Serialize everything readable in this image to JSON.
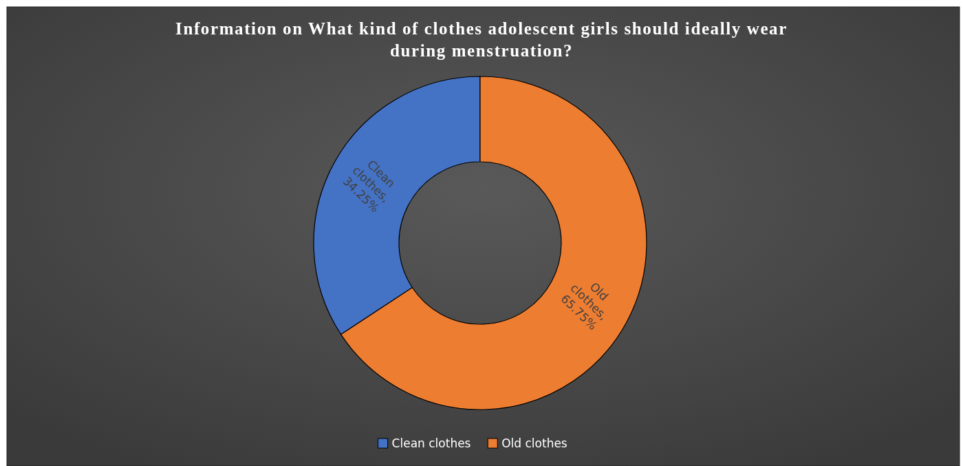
{
  "chart_data": {
    "type": "donut",
    "title": "Information on What kind of clothes adolescent girls should ideally wear during menstruation?",
    "categories": [
      "Clean clothes",
      "Old clothes"
    ],
    "values": [
      34.25,
      65.75
    ],
    "colors": [
      "#4472c4",
      "#ed7d31"
    ],
    "value_labels": [
      "Clean clothes, 34.25%",
      "Old clothes, 65.75%"
    ],
    "legend": "bottom"
  }
}
